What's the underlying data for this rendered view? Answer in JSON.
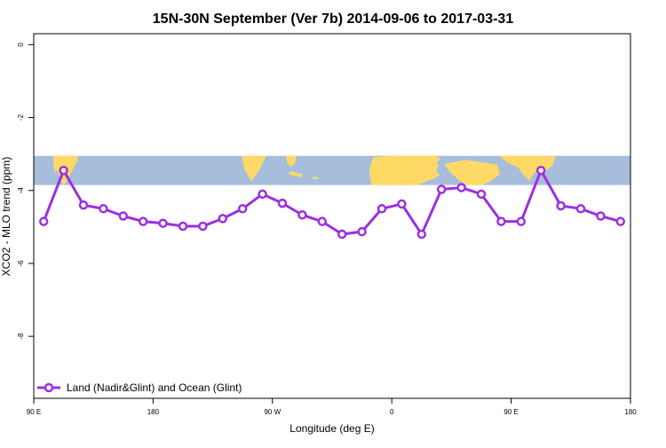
{
  "chart_data": {
    "type": "line",
    "title": "15N-30N September (Ver 7b)   2014-09-06 to 2017-03-31",
    "xlabel": "Longitude (deg E)",
    "ylabel": "XCO2 - MLO trend (ppm)",
    "xlim": [
      90,
      540
    ],
    "ylim": [
      -9.7,
      0.3
    ],
    "x_ticks": [
      {
        "value": 90,
        "label": "90 E"
      },
      {
        "value": 180,
        "label": "180"
      },
      {
        "value": 270,
        "label": "90 W"
      },
      {
        "value": 360,
        "label": "0"
      },
      {
        "value": 450,
        "label": "90 E"
      },
      {
        "value": 540,
        "label": "180"
      }
    ],
    "y_ticks": [
      {
        "value": 0,
        "label": "0"
      },
      {
        "value": -2,
        "label": "-2"
      },
      {
        "value": -4,
        "label": "-4"
      },
      {
        "value": -6,
        "label": "-6"
      },
      {
        "value": -8,
        "label": "-8"
      }
    ],
    "grid": false,
    "legend": "bottom-left",
    "map_strip": {
      "description_ylim": [
        -3.85,
        -3.05
      ],
      "ocean_color": "#a6bddb",
      "land_color": "#ffd966"
    },
    "series": [
      {
        "name": "Land (Nadir&Glint) and Ocean (Glint)",
        "color": "#9b30e0",
        "x": [
          97.5,
          112.5,
          127.5,
          142.5,
          157.5,
          172.5,
          187.5,
          202.5,
          217.5,
          232.5,
          247.5,
          262.5,
          277.5,
          292.5,
          307.5,
          322.5,
          337.5,
          352.5,
          367.5,
          382.5,
          397.5,
          412.5,
          427.5,
          442.5,
          457.5,
          472.5,
          487.5,
          502.5,
          517.5,
          532.5
        ],
        "values": [
          -4.85,
          -3.45,
          -4.4,
          -4.5,
          -4.7,
          -4.85,
          -4.9,
          -4.98,
          -4.98,
          -4.77,
          -4.5,
          -4.1,
          -4.35,
          -4.67,
          -4.85,
          -5.2,
          -5.13,
          -4.5,
          -4.37,
          -5.2,
          -3.97,
          -3.92,
          -4.1,
          -4.85,
          -4.85,
          -3.45,
          -4.42,
          -4.5,
          -4.7,
          -4.85
        ]
      }
    ]
  }
}
